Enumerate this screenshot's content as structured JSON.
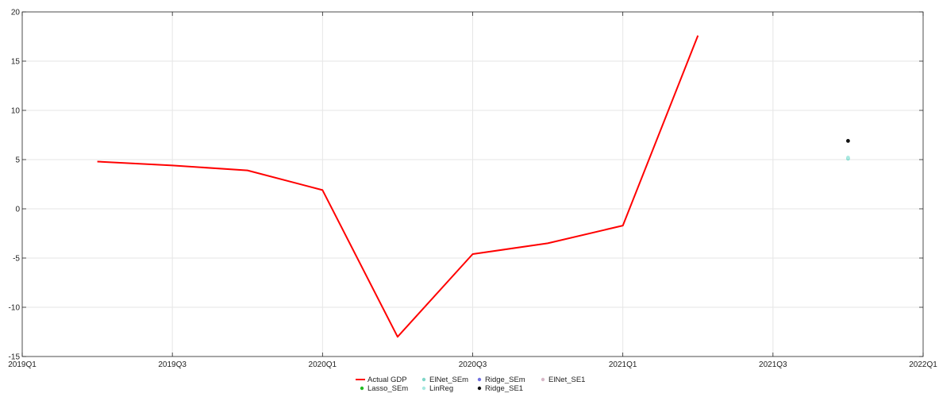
{
  "chart_data": {
    "type": "line",
    "title": "",
    "xlabel": "",
    "ylabel": "",
    "x_ticks": [
      "2019Q1",
      "2019Q3",
      "2020Q1",
      "2020Q3",
      "2021Q1",
      "2021Q3",
      "2022Q1"
    ],
    "y_ticks": [
      -15,
      -10,
      -5,
      0,
      5,
      10,
      15,
      20
    ],
    "xlim": [
      "2019Q1",
      "2022Q1"
    ],
    "ylim": [
      -15,
      20
    ],
    "grid": true,
    "legend_position": "bottom-center",
    "series": [
      {
        "name": "Actual GDP",
        "color": "#ff0000",
        "style": "line",
        "x": [
          "2019Q2",
          "2019Q3",
          "2019Q4",
          "2020Q1",
          "2020Q2",
          "2020Q3",
          "2020Q4",
          "2021Q1",
          "2021Q2"
        ],
        "y": [
          4.8,
          4.4,
          3.9,
          1.9,
          -13.0,
          -4.6,
          -3.5,
          -1.7,
          17.6
        ]
      },
      {
        "name": "ElNet_SEm",
        "color": "#7fd6c8",
        "style": "marker",
        "x": [
          "2021Q4"
        ],
        "y": [
          5.1
        ]
      },
      {
        "name": "Ridge_SEm",
        "color": "#7070e0",
        "style": "marker",
        "x": [],
        "y": []
      },
      {
        "name": "ElNet_SE1",
        "color": "#d8b8c8",
        "style": "marker",
        "x": [],
        "y": []
      },
      {
        "name": "Lasso_SEm",
        "color": "#22bb22",
        "style": "marker",
        "x": [],
        "y": []
      },
      {
        "name": "LinReg",
        "color": "#a8e8e0",
        "style": "marker",
        "x": [
          "2021Q4"
        ],
        "y": [
          5.2
        ]
      },
      {
        "name": "Ridge_SE1",
        "color": "#111111",
        "style": "marker",
        "x": [
          "2021Q4"
        ],
        "y": [
          6.9
        ]
      }
    ],
    "legend_rows": [
      [
        "Actual GDP",
        "ElNet_SEm",
        "Ridge_SEm",
        "ElNet_SE1"
      ],
      [
        "Lasso_SEm",
        "LinReg",
        "Ridge_SE1"
      ]
    ]
  }
}
